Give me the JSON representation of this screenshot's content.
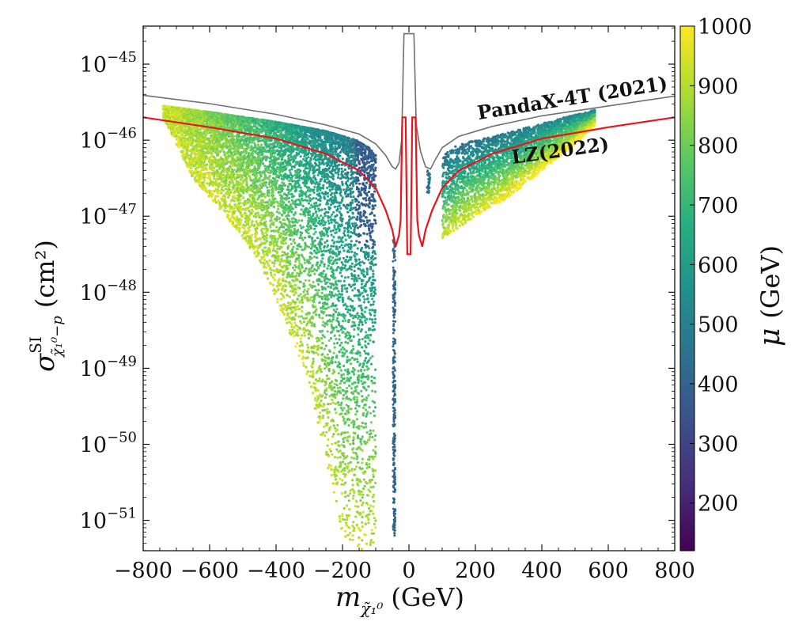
{
  "chart_data": {
    "type": "scatter",
    "title": "",
    "xlabel": "m_χ̃₁⁰ (GeV)",
    "xlabel_symbol": "m",
    "xlabel_sub": "χ̃₁⁰",
    "xlabel_unit": "(GeV)",
    "ylabel": "σ^SI_χ̃₁⁰−p (cm²)",
    "ylabel_symbol": "σ",
    "ylabel_sup": "SI",
    "ylabel_sub": "χ̃₁⁰−p",
    "ylabel_unit": "(cm²)",
    "xlim": [
      -800,
      800
    ],
    "ylim_log10": [
      -51.4,
      -44.5
    ],
    "yscale": "log",
    "x_ticks": [
      -800,
      -600,
      -400,
      -200,
      0,
      200,
      400,
      600,
      800
    ],
    "x_tick_labels": [
      "−800",
      "−600",
      "−400",
      "−200",
      "0",
      "200",
      "400",
      "600",
      "800"
    ],
    "y_ticks_log10": [
      -45,
      -46,
      -47,
      -48,
      -49,
      -50,
      -51
    ],
    "y_tick_labels": [
      {
        "base": "10",
        "exp": "−45"
      },
      {
        "base": "10",
        "exp": "−46"
      },
      {
        "base": "10",
        "exp": "−47"
      },
      {
        "base": "10",
        "exp": "−48"
      },
      {
        "base": "10",
        "exp": "−49"
      },
      {
        "base": "10",
        "exp": "−50"
      },
      {
        "base": "10",
        "exp": "−51"
      }
    ],
    "colorbar": {
      "label_symbol": "μ",
      "label_unit": "(GeV)",
      "min": 120,
      "max": 1000,
      "ticks": [
        200,
        300,
        400,
        500,
        600,
        700,
        800,
        900,
        1000
      ],
      "tick_labels": [
        "200",
        "300",
        "400",
        "500",
        "600",
        "700",
        "800",
        "900",
        "1000"
      ],
      "colormap": "viridis"
    },
    "curves": [
      {
        "name": "PandaX-4T (2021)",
        "label_text": "PandaX-4T (2021)",
        "color": "#707070",
        "points": [
          [
            -800,
            -45.41
          ],
          [
            -600,
            -45.52
          ],
          [
            -400,
            -45.66
          ],
          [
            -250,
            -45.8
          ],
          [
            -150,
            -45.92
          ],
          [
            -100,
            -46.05
          ],
          [
            -70,
            -46.2
          ],
          [
            -50,
            -46.35
          ],
          [
            -40,
            -46.38
          ],
          [
            -30,
            -46.3
          ],
          [
            -22,
            -46.0
          ],
          [
            -15,
            -44.6
          ],
          [
            -10,
            -44.6
          ],
          [
            -10,
            -44.6
          ],
          [
            10,
            -44.6
          ],
          [
            10,
            -44.6
          ],
          [
            15,
            -44.6
          ],
          [
            22,
            -45.8
          ],
          [
            35,
            -46.15
          ],
          [
            50,
            -46.35
          ],
          [
            65,
            -46.38
          ],
          [
            80,
            -46.25
          ],
          [
            100,
            -46.1
          ],
          [
            150,
            -45.95
          ],
          [
            250,
            -45.82
          ],
          [
            400,
            -45.68
          ],
          [
            600,
            -45.55
          ],
          [
            800,
            -45.42
          ]
        ]
      },
      {
        "name": "LZ (2022)",
        "label_text": "LZ(2022)",
        "color": "#e8141b",
        "points": [
          [
            -800,
            -45.7
          ],
          [
            -600,
            -45.83
          ],
          [
            -400,
            -45.98
          ],
          [
            -250,
            -46.18
          ],
          [
            -150,
            -46.4
          ],
          [
            -100,
            -46.63
          ],
          [
            -70,
            -46.92
          ],
          [
            -50,
            -47.18
          ],
          [
            -40,
            -47.4
          ],
          [
            -30,
            -47.25
          ],
          [
            -25,
            -47.05
          ],
          [
            -20,
            -45.7
          ],
          [
            -10,
            -45.7
          ],
          [
            -5,
            -47.5
          ],
          [
            5,
            -47.5
          ],
          [
            10,
            -45.7
          ],
          [
            20,
            -45.7
          ],
          [
            25,
            -47.05
          ],
          [
            30,
            -47.25
          ],
          [
            40,
            -47.4
          ],
          [
            50,
            -47.18
          ],
          [
            70,
            -46.92
          ],
          [
            100,
            -46.63
          ],
          [
            150,
            -46.4
          ],
          [
            250,
            -46.18
          ],
          [
            400,
            -45.98
          ],
          [
            600,
            -45.83
          ],
          [
            800,
            -45.7
          ]
        ]
      }
    ],
    "scatter_regions": [
      {
        "name": "negative-mass branch",
        "x_range": [
          -740,
          -100
        ],
        "log10_sigma_range": [
          -51.4,
          -45.5
        ],
        "mu_range": [
          300,
          1000
        ]
      },
      {
        "name": "negative-mass funnel",
        "x_range": [
          -48,
          -40
        ],
        "log10_sigma_range": [
          -51.2,
          -47.3
        ],
        "mu_range": [
          380,
          420
        ]
      },
      {
        "name": "positive-mass island",
        "x_range": [
          55,
          65
        ],
        "log10_sigma_range": [
          -46.7,
          -46.4
        ],
        "mu_range": [
          400,
          500
        ]
      },
      {
        "name": "positive-mass branch",
        "x_range": [
          100,
          560
        ],
        "log10_sigma_range": [
          -47.3,
          -45.6
        ],
        "mu_range": [
          500,
          1000
        ]
      }
    ]
  }
}
